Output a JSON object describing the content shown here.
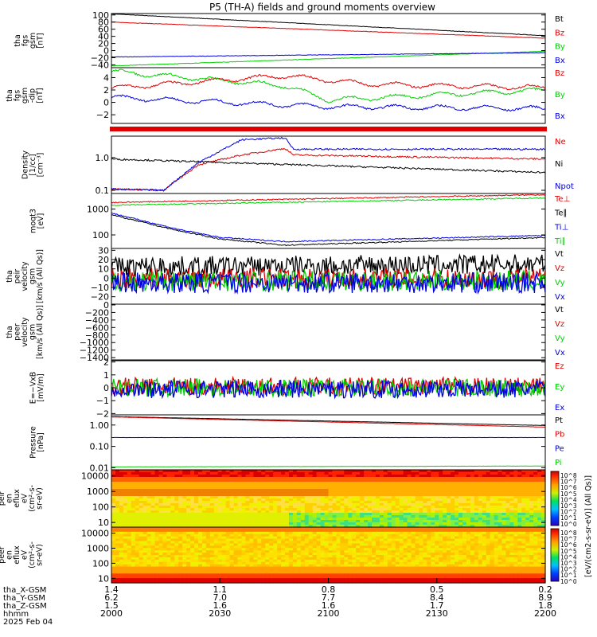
{
  "title": "P5 (TH-A) fields and ground moments overview",
  "colors": {
    "black": "#000000",
    "red": "#e00000",
    "green": "#00d000",
    "blue": "#0000e0"
  },
  "colorbar_label": "[eV/(cm2-s-sr-eV)] (All Qs)]",
  "colorbar_ticks": [
    "10^8",
    "10^7",
    "10^6",
    "10^5",
    "10^4",
    "10^3",
    "10^2",
    "10^1",
    "10^0",
    "10^8",
    "10^7",
    "10^6",
    "10^5",
    "10^4",
    "10^3",
    "10^2",
    "10^1",
    "10^0"
  ],
  "chart_data": [
    {
      "type": "line",
      "ylabel": [
        "tha",
        "fgs",
        "gsm",
        "[nT]"
      ],
      "yticks": [
        "100",
        "80",
        "60",
        "40",
        "20",
        "0",
        "−20",
        "−40"
      ],
      "ylim": [
        -48,
        104
      ],
      "legend": [
        "Bt",
        "Bz",
        "By",
        "Bx"
      ],
      "series": [
        {
          "name": "Bt",
          "x": [
            0,
            1
          ],
          "values": [
            103,
            42
          ]
        },
        {
          "name": "Bz",
          "x": [
            0,
            1
          ],
          "values": [
            80,
            35
          ]
        },
        {
          "name": "By",
          "x": [
            0,
            1
          ],
          "values": [
            -43,
            -2
          ]
        },
        {
          "name": "Bx",
          "x": [
            0,
            1
          ],
          "values": [
            -18,
            -6
          ]
        }
      ]
    },
    {
      "type": "line",
      "ylabel": [
        "tha",
        "fgs",
        "gsm",
        "-dip",
        "[nT]"
      ],
      "yticks": [
        "4",
        "2",
        "0",
        "−2"
      ],
      "ylim": [
        -3.4,
        5.6
      ],
      "legend": [
        "Bz",
        "By",
        "Bx"
      ],
      "series": [
        {
          "name": "Bz",
          "x": [
            0,
            0.4,
            0.6,
            1
          ],
          "values": [
            2.3,
            4.3,
            2.9,
            2.4
          ]
        },
        {
          "name": "By",
          "x": [
            0,
            0.4,
            0.5,
            1
          ],
          "values": [
            5.0,
            2.7,
            0.4,
            2.0
          ]
        },
        {
          "name": "Bx",
          "x": [
            0,
            0.5,
            1
          ],
          "values": [
            0.8,
            -0.7,
            -1.0
          ]
        }
      ]
    },
    {
      "type": "line",
      "ylabel": [
        "Density",
        "[1/cc]",
        "[cm⁻³]"
      ],
      "yticks": [
        "1.0",
        "0.1"
      ],
      "ylim": [
        0.08,
        4.5
      ],
      "scale": "log",
      "legend": [
        "Ne",
        "Ni",
        "Npot"
      ],
      "series": [
        {
          "name": "Ne",
          "x": [
            0,
            0.12,
            0.2,
            0.3,
            0.4,
            0.42,
            1
          ],
          "values": [
            0.11,
            0.1,
            0.6,
            1.2,
            1.9,
            1.2,
            0.9
          ]
        },
        {
          "name": "Ni",
          "x": [
            0,
            1
          ],
          "values": [
            0.9,
            0.35
          ]
        },
        {
          "name": "Npot",
          "x": [
            0,
            0.12,
            0.2,
            0.3,
            0.4,
            0.42,
            1
          ],
          "values": [
            0.11,
            0.1,
            0.7,
            3.5,
            4.0,
            1.8,
            1.8
          ]
        }
      ]
    },
    {
      "type": "line",
      "ylabel": [
        "moqt3",
        "[eV]"
      ],
      "yticks": [
        "1000",
        "100"
      ],
      "ylim": [
        30,
        4000
      ],
      "scale": "log",
      "legend": [
        "Te⊥",
        "Te∥",
        "Ti⊥",
        "Ti∥"
      ],
      "series": [
        {
          "name": "Te⊥",
          "x": [
            0,
            1
          ],
          "values": [
            1800,
            3600
          ]
        },
        {
          "name": "Te∥",
          "x": [
            0,
            0.15,
            0.25,
            0.4,
            1
          ],
          "values": [
            600,
            150,
            70,
            40,
            80
          ]
        },
        {
          "name": "Ti⊥",
          "x": [
            0,
            0.15,
            0.25,
            0.4,
            1
          ],
          "values": [
            700,
            170,
            80,
            55,
            95
          ]
        },
        {
          "name": "Ti∥",
          "x": [
            0,
            1
          ],
          "values": [
            1400,
            2700
          ]
        }
      ]
    },
    {
      "type": "line",
      "ylabel": [
        "tha",
        "peir",
        "velocity",
        "gsm",
        "[km/s (All Qs)]"
      ],
      "yticks": [
        "30",
        "20",
        "10",
        "0",
        "−10",
        "−20"
      ],
      "ylim": [
        -28,
        32
      ],
      "legend": [
        "Vt",
        "Vz",
        "Vy",
        "Vx"
      ],
      "series": [
        {
          "name": "Vt",
          "x": [
            0,
            1
          ],
          "values": [
            12,
            15
          ]
        },
        {
          "name": "Vz",
          "x": [
            0,
            1
          ],
          "values": [
            0,
            0
          ]
        },
        {
          "name": "Vy",
          "x": [
            0,
            1
          ],
          "values": [
            -3,
            -3
          ]
        },
        {
          "name": "Vx",
          "x": [
            0,
            1
          ],
          "values": [
            -5,
            -5
          ]
        }
      ]
    },
    {
      "type": "line",
      "ylabel": [
        "tha",
        "peer",
        "velocity",
        "gsm",
        "[km/s (All Qs)]"
      ],
      "yticks": [
        "0",
        "−200",
        "−400",
        "−600",
        "−800",
        "−1000",
        "−1200",
        "−1400"
      ],
      "ylim": [
        -1460,
        20
      ],
      "legend": [
        "Vt",
        "Vz",
        "Vy",
        "Vx"
      ],
      "series": []
    },
    {
      "type": "line",
      "ylabel": [
        "E=−VxB",
        "[mV/m]"
      ],
      "yticks": [
        "2",
        "1",
        "0",
        "−1",
        "−2"
      ],
      "ylim": [
        -2.1,
        2.1
      ],
      "legend": [
        "Ez",
        "Ey",
        "Ex"
      ],
      "series": [
        {
          "name": "Ez",
          "x": [
            0,
            1
          ],
          "values": [
            0.1,
            0.1
          ]
        },
        {
          "name": "Ey",
          "x": [
            0,
            1
          ],
          "values": [
            0,
            0
          ]
        },
        {
          "name": "Ex",
          "x": [
            0,
            1
          ],
          "values": [
            -0.1,
            -0.1
          ]
        }
      ]
    },
    {
      "type": "line",
      "ylabel": [
        "Pressure",
        "[nPa]"
      ],
      "yticks": [
        "1.00",
        "0.10",
        "0.01"
      ],
      "ylim": [
        0.008,
        3
      ],
      "scale": "log",
      "legend": [
        "Pt",
        "Pb",
        "Pe",
        "Pi"
      ],
      "series": [
        {
          "name": "Pt",
          "x": [
            0,
            1
          ],
          "values": [
            2.5,
            0.95
          ]
        },
        {
          "name": "Pb",
          "x": [
            0,
            1
          ],
          "values": [
            2.4,
            0.8
          ]
        },
        {
          "name": "Pe",
          "x": [
            0,
            1
          ],
          "values": [
            0.26,
            0.26
          ]
        },
        {
          "name": "Pi",
          "x": [
            0,
            1
          ],
          "values": [
            0.011,
            0.012
          ]
        }
      ]
    },
    {
      "type": "heatmap",
      "ylabel": [
        "tha",
        "peir",
        "en",
        "eflux",
        "eV",
        "(cm²-s-",
        "sr-eV)"
      ],
      "yticks": [
        "10000",
        "1000",
        "100",
        "10"
      ],
      "ylim": [
        5,
        25000
      ],
      "scale": "log"
    },
    {
      "type": "heatmap",
      "ylabel": [
        "tha",
        "peer",
        "en",
        "eflux",
        "eV",
        "(cm²-s-",
        "sr-eV)"
      ],
      "yticks": [
        "10000",
        "1000",
        "100",
        "10"
      ],
      "ylim": [
        5,
        25000
      ],
      "scale": "log"
    }
  ],
  "xaxis": {
    "row_labels": [
      "tha_X-GSM",
      "tha_Y-GSM",
      "tha_Z-GSM",
      "hhmm",
      "2025 Feb 04"
    ],
    "ticks": [
      {
        "x": "1.4",
        "y": "6.2",
        "z": "1.5",
        "t": "2000"
      },
      {
        "x": "1.1",
        "y": "7.0",
        "z": "1.6",
        "t": "2030"
      },
      {
        "x": "0.8",
        "y": "7.7",
        "z": "1.6",
        "t": "2100"
      },
      {
        "x": "0.5",
        "y": "8.4",
        "z": "1.7",
        "t": "2130"
      },
      {
        "x": "0.2",
        "y": "8.9",
        "z": "1.8",
        "t": "2200"
      }
    ]
  }
}
